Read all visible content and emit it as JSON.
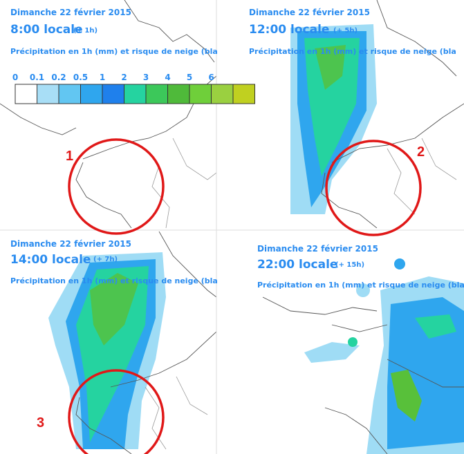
{
  "panels": [
    {
      "date": "Dimanche 22 février 2015",
      "time": "8:00 locale",
      "offset": "(+ 1h)",
      "caption": "Précipitation en 1h (mm) et risque de neige (bla"
    },
    {
      "date": "Dimanche 22 février 2015",
      "time": "12:00 locale",
      "offset": "(+ 5h)",
      "caption": "Précipitation en 1h (mm) et risque de neige (bla"
    },
    {
      "date": "Dimanche 22 février 2015",
      "time": "14:00 locale",
      "offset": "(+ 7h)",
      "caption": "Précipitation en 1h (mm) et risque de neige (bla"
    },
    {
      "date": "Dimanche 22 février 2015",
      "time": "22:00 locale",
      "offset": "(+ 15h)",
      "caption": "Précipitation en 1h (mm) et risque de neige (bla"
    }
  ],
  "legend": {
    "labels": [
      "0",
      "0.1",
      "0.2",
      "0.5",
      "1",
      "2",
      "3",
      "4",
      "5",
      "6"
    ]
  },
  "markers": [
    "1",
    "2",
    "3"
  ]
}
